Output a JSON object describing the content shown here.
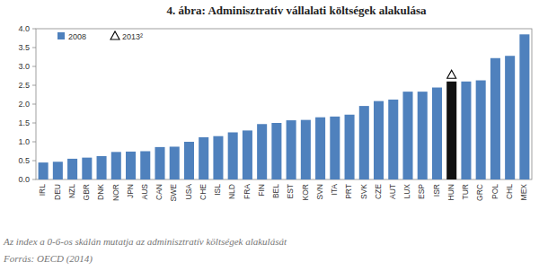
{
  "chart_data": {
    "type": "bar",
    "title": "4. ábra: Adminisztratív vállalati költségek alakulása",
    "caption": "Az index a 0-6-os skálán mutatja az adminisztratív költségek alakulását",
    "source": "Forrás: OECD (2014)",
    "categories": [
      "IRL",
      "DEU",
      "NZL",
      "GBR",
      "DNK",
      "NOR",
      "JPN",
      "AUS",
      "CAN",
      "SWE",
      "USA",
      "CHE",
      "ISL",
      "NLD",
      "FRA",
      "FIN",
      "BEL",
      "EST",
      "KOR",
      "SVN",
      "ITA",
      "PRT",
      "SVK",
      "CZE",
      "AUT",
      "LUX",
      "ESP",
      "ISR",
      "HUN",
      "TUR",
      "GRC",
      "POL",
      "CHL",
      "MEX"
    ],
    "series": [
      {
        "name": "2008",
        "type": "bar",
        "color": "#4f81bd",
        "colors": [
          "#4f81bd",
          "#4f81bd",
          "#4f81bd",
          "#4f81bd",
          "#4f81bd",
          "#4f81bd",
          "#4f81bd",
          "#4f81bd",
          "#4f81bd",
          "#4f81bd",
          "#4f81bd",
          "#4f81bd",
          "#4f81bd",
          "#4f81bd",
          "#4f81bd",
          "#4f81bd",
          "#4f81bd",
          "#4f81bd",
          "#4f81bd",
          "#4f81bd",
          "#4f81bd",
          "#4f81bd",
          "#4f81bd",
          "#4f81bd",
          "#4f81bd",
          "#4f81bd",
          "#4f81bd",
          "#4f81bd",
          "#111111",
          "#4f81bd",
          "#4f81bd",
          "#4f81bd",
          "#4f81bd",
          "#4f81bd"
        ],
        "values": [
          0.45,
          0.47,
          0.55,
          0.58,
          0.62,
          0.73,
          0.74,
          0.75,
          0.86,
          0.87,
          1.0,
          1.12,
          1.15,
          1.25,
          1.3,
          1.47,
          1.5,
          1.57,
          1.58,
          1.65,
          1.67,
          1.72,
          1.95,
          2.08,
          2.12,
          2.33,
          2.33,
          2.44,
          2.6,
          2.6,
          2.63,
          3.22,
          3.28,
          3.85
        ]
      },
      {
        "name": "2013²",
        "type": "scatter",
        "marker": "triangle",
        "color": "#000000",
        "values": [
          null,
          null,
          null,
          null,
          null,
          null,
          null,
          null,
          null,
          null,
          null,
          null,
          null,
          null,
          null,
          null,
          null,
          null,
          null,
          null,
          null,
          null,
          null,
          null,
          null,
          null,
          null,
          null,
          2.78,
          null,
          null,
          null,
          null,
          null
        ]
      }
    ],
    "ylim": [
      0,
      4
    ],
    "yticks": [
      {
        "value": 0,
        "label": "0.0"
      },
      0.5,
      {
        "value": 1,
        "label": "1.0"
      },
      1.5,
      {
        "value": 2,
        "label": "2.0"
      },
      2.5,
      {
        "value": 3,
        "label": "3.0"
      },
      3.5,
      {
        "value": 4,
        "label": "4.0"
      }
    ],
    "grid": false,
    "legend": "top-left"
  }
}
